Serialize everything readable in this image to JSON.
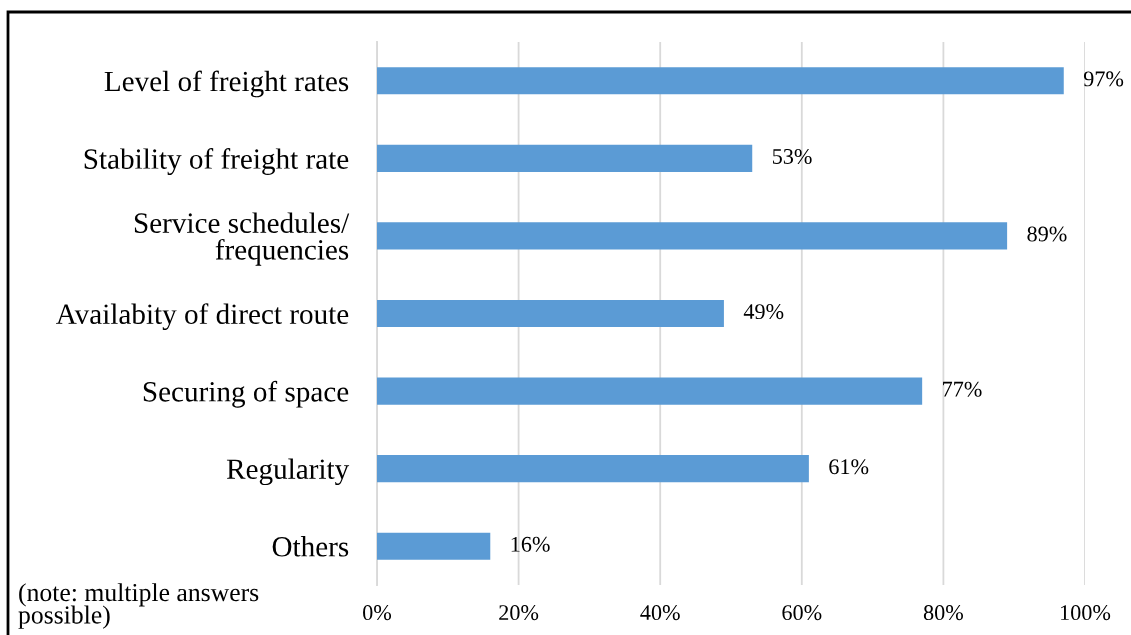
{
  "chart_data": {
    "type": "bar",
    "orientation": "horizontal",
    "categories": [
      "Level of freight rates",
      "Stability of freight rate",
      "Service schedules/\nfrequencies",
      "Availabity of direct route",
      "Securing of space",
      "Regularity",
      "Others"
    ],
    "values": [
      97,
      53,
      89,
      49,
      77,
      61,
      16
    ],
    "value_labels": [
      "97%",
      "53%",
      "89%",
      "49%",
      "77%",
      "61%",
      "16%"
    ],
    "color": "#5b9bd5",
    "xlim": [
      0,
      100
    ],
    "xticks": [
      {
        "value": 0,
        "label": "0%"
      },
      {
        "value": 20,
        "label": "20%"
      },
      {
        "value": 40,
        "label": "40%"
      },
      {
        "value": 60,
        "label": "60%"
      },
      {
        "value": 80,
        "label": "80%"
      },
      {
        "value": 100,
        "label": "100%"
      }
    ],
    "grid": "x",
    "annotations": [
      "(note: multiple answers\npossible)"
    ]
  }
}
